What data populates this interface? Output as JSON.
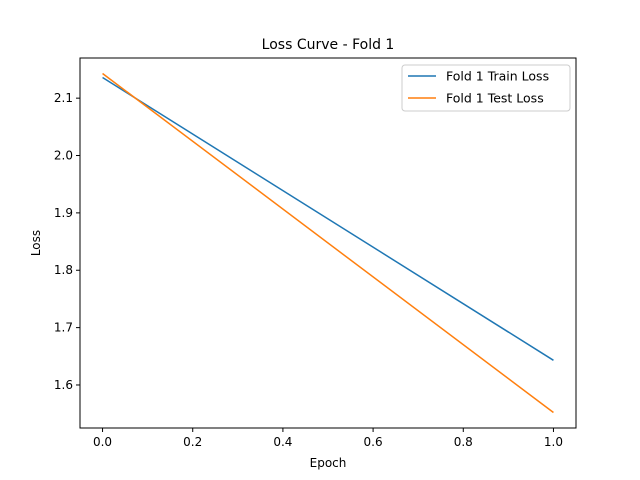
{
  "chart_data": {
    "type": "line",
    "title": "Loss Curve - Fold 1",
    "xlabel": "Epoch",
    "ylabel": "Loss",
    "xlim": [
      -0.05,
      1.05
    ],
    "ylim": [
      1.525,
      2.17
    ],
    "xticks": [
      "0.0",
      "0.2",
      "0.4",
      "0.6",
      "0.8",
      "1.0"
    ],
    "yticks": [
      "1.6",
      "1.7",
      "1.8",
      "1.9",
      "2.0",
      "2.1"
    ],
    "grid": false,
    "legend_position": "top-right",
    "series": [
      {
        "name": "Fold 1 Train Loss",
        "color": "#1f77b4",
        "x": [
          0,
          1
        ],
        "y": [
          2.136,
          1.643
        ]
      },
      {
        "name": "Fold 1 Test Loss",
        "color": "#ff7f0e",
        "x": [
          0,
          1
        ],
        "y": [
          2.143,
          1.552
        ]
      }
    ]
  }
}
